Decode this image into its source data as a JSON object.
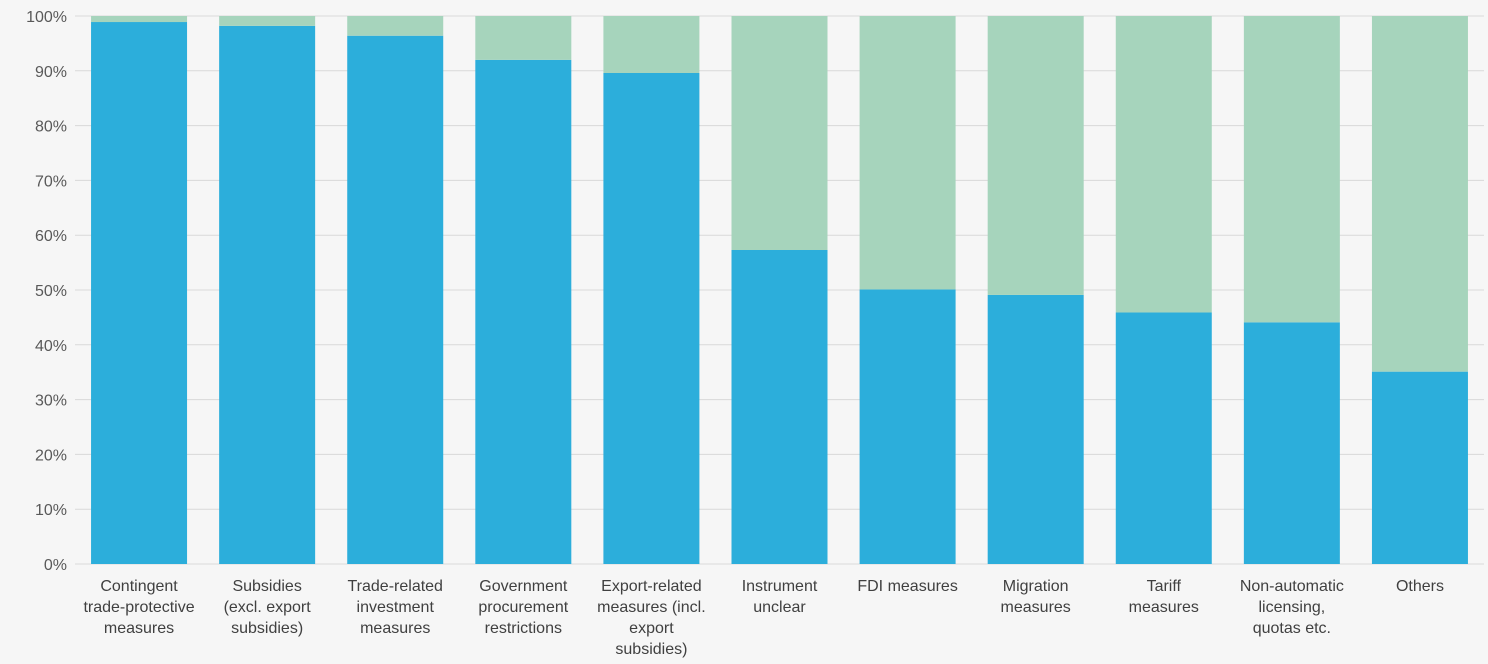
{
  "chart_data": {
    "type": "bar",
    "stacked": true,
    "percent": true,
    "categories": [
      "Contingent trade-protective measures",
      "Subsidies (excl. export subsidies)",
      "Trade-related investment measures",
      "Government procurement restrictions",
      "Export-related measures (incl. export subsidies)",
      "Instrument unclear",
      "FDI measures",
      "Migration measures",
      "Tariff measures",
      "Non-automatic licensing, quotas etc.",
      "Others"
    ],
    "category_label_lines": [
      [
        "Contingent",
        "trade-protective",
        "measures"
      ],
      [
        "Subsidies",
        "(excl. export",
        "subsidies)"
      ],
      [
        "Trade-related",
        "investment",
        "measures"
      ],
      [
        "Government",
        "procurement",
        "restrictions"
      ],
      [
        "Export-related",
        "measures (incl.",
        "export",
        "subsidies)"
      ],
      [
        "Instrument",
        "unclear"
      ],
      [
        "FDI measures"
      ],
      [
        "Migration",
        "measures"
      ],
      [
        "Tariff",
        "measures"
      ],
      [
        "Non-automatic",
        "licensing,",
        "quotas etc."
      ],
      [
        "Others"
      ]
    ],
    "series": [
      {
        "values": [
          98.9,
          98.2,
          96.4,
          92.0,
          89.6,
          57.3,
          50.1,
          49.1,
          45.9,
          44.1,
          35.1
        ]
      },
      {
        "values": [
          1.1,
          1.8,
          3.6,
          8.0,
          10.4,
          42.7,
          49.9,
          50.9,
          54.1,
          55.9,
          64.9
        ]
      }
    ],
    "colors": [
      "#2caedb",
      "#a6d4bc"
    ],
    "ylim": [
      0,
      100
    ],
    "yticks": [
      "0%",
      "10%",
      "20%",
      "30%",
      "40%",
      "50%",
      "60%",
      "70%",
      "80%",
      "90%",
      "100%"
    ],
    "grid": true,
    "legend": "none",
    "title": "",
    "xlabel": "",
    "ylabel": ""
  }
}
